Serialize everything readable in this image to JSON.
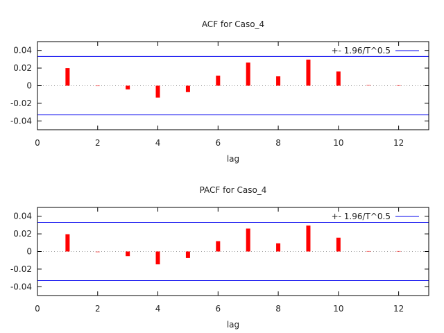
{
  "chart_data": [
    {
      "type": "bar",
      "title": "ACF for Caso_4",
      "xlabel": "lag",
      "ylabel": "",
      "xlim": [
        0,
        13
      ],
      "ylim": [
        -0.05,
        0.05
      ],
      "xticks": [
        "0",
        "2",
        "4",
        "6",
        "8",
        "10",
        "12"
      ],
      "yticks": [
        "0.04",
        "0.02",
        "0",
        "-0.02",
        "-0.04"
      ],
      "legend": "+- 1.96/T^0.5",
      "legend_position": "top-right",
      "confidence_band": 0.0332,
      "x": [
        1,
        2,
        3,
        4,
        5,
        6,
        7,
        8,
        9,
        10,
        11,
        12
      ],
      "values": [
        0.02,
        0.0003,
        -0.0042,
        -0.0135,
        -0.0073,
        0.0114,
        0.0262,
        0.0106,
        0.0296,
        0.0161,
        0.0008,
        0.0005
      ]
    },
    {
      "type": "bar",
      "title": "PACF for Caso_4",
      "xlabel": "lag",
      "ylabel": "",
      "xlim": [
        0,
        13
      ],
      "ylim": [
        -0.05,
        0.05
      ],
      "xticks": [
        "0",
        "2",
        "4",
        "6",
        "8",
        "10",
        "12"
      ],
      "yticks": [
        "0.04",
        "0.02",
        "0",
        "-0.02",
        "-0.04"
      ],
      "legend": "+- 1.96/T^0.5",
      "legend_position": "top-right",
      "confidence_band": 0.0331,
      "x": [
        1,
        2,
        3,
        4,
        5,
        6,
        7,
        8,
        9,
        10,
        11,
        12
      ],
      "values": [
        0.0196,
        -0.001,
        -0.0053,
        -0.0146,
        -0.0074,
        0.0117,
        0.026,
        0.0093,
        0.0294,
        0.0156,
        0.0005,
        0.0005
      ]
    }
  ],
  "colors": {
    "bar": "#ff0000",
    "band": "#0000ee",
    "zero": "#a0a0a0"
  }
}
